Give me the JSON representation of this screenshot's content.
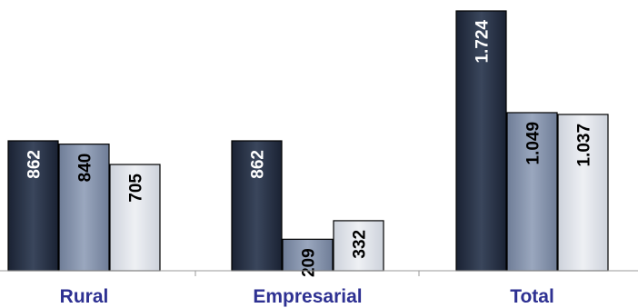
{
  "chart_data": {
    "type": "bar",
    "categories": [
      "Rural",
      "Empresarial",
      "Total"
    ],
    "series": [
      {
        "values": [
          862,
          862,
          1724
        ],
        "labels": [
          "862",
          "862",
          "1.724"
        ],
        "color": "#2a3447"
      },
      {
        "values": [
          840,
          209,
          1049
        ],
        "labels": [
          "840",
          "209",
          "1.049"
        ],
        "color": "#8694ad"
      },
      {
        "values": [
          705,
          332,
          1037
        ],
        "labels": [
          "705",
          "332",
          "1.037"
        ],
        "color": "#dde1e8"
      }
    ],
    "label_colors": [
      "#ffffff",
      "#000000",
      "#000000"
    ],
    "category_label_color": "#2e3192",
    "ylim": [
      0,
      1724
    ],
    "legend": "none",
    "grid": false
  }
}
